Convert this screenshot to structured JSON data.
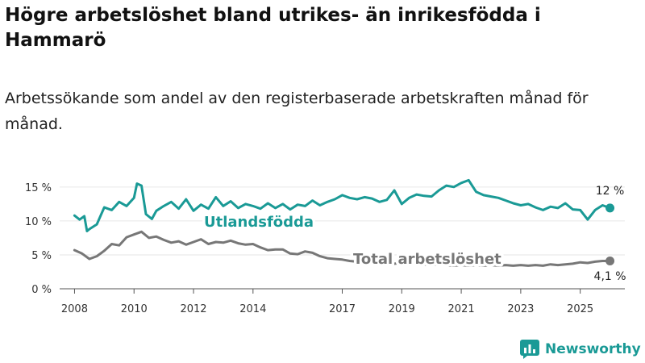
{
  "title": "Högre arbetslöshet bland utrikes- än inrikesfödda i Hammarö",
  "subtitle": "Arbetssökande som andel av den registerbaserade arbetskraften månad för månad.",
  "brand": "Newsworthy",
  "colors": {
    "foreign": "#1a9a96",
    "total": "#777777",
    "axis": "#555555",
    "grid": "#e6e6e6"
  },
  "chart_data": {
    "type": "line",
    "xlim": [
      2007.5,
      2026.5
    ],
    "ylim": [
      0,
      17
    ],
    "y_ticks": [
      0,
      5,
      10,
      15
    ],
    "y_tick_labels": [
      "0 %",
      "5 %",
      "10 %",
      "15 %"
    ],
    "x_ticks": [
      2008,
      2010,
      2012,
      2014,
      2017,
      2019,
      2021,
      2023,
      2025
    ],
    "x_tick_labels": [
      "2008",
      "2010",
      "2012",
      "2014",
      "2017",
      "2019",
      "2021",
      "2023",
      "2025"
    ],
    "series": [
      {
        "name": "Utlandsfödda",
        "label": "Utlandsfödda",
        "end_label": "12 %",
        "color": "#1a9a96",
        "x": [
          2008.0,
          2008.17,
          2008.33,
          2008.42,
          2008.5,
          2008.75,
          2009.0,
          2009.25,
          2009.5,
          2009.75,
          2010.0,
          2010.1,
          2010.25,
          2010.4,
          2010.6,
          2010.75,
          2011.0,
          2011.25,
          2011.5,
          2011.75,
          2012.0,
          2012.25,
          2012.5,
          2012.75,
          2013.0,
          2013.25,
          2013.5,
          2013.75,
          2014.0,
          2014.25,
          2014.5,
          2014.75,
          2015.0,
          2015.25,
          2015.5,
          2015.75,
          2016.0,
          2016.25,
          2016.5,
          2016.75,
          2017.0,
          2017.25,
          2017.5,
          2017.75,
          2018.0,
          2018.25,
          2018.5,
          2018.75,
          2019.0,
          2019.25,
          2019.5,
          2019.75,
          2020.0,
          2020.25,
          2020.5,
          2020.75,
          2021.0,
          2021.25,
          2021.5,
          2021.75,
          2022.0,
          2022.25,
          2022.5,
          2022.75,
          2023.0,
          2023.25,
          2023.5,
          2023.75,
          2024.0,
          2024.25,
          2024.5,
          2024.75,
          2025.0,
          2025.25,
          2025.5,
          2025.75,
          2026.0
        ],
        "y": [
          10.8,
          10.2,
          10.7,
          8.5,
          8.8,
          9.5,
          12.0,
          11.6,
          12.8,
          12.2,
          13.4,
          15.5,
          15.2,
          11.0,
          10.3,
          11.5,
          12.2,
          12.8,
          11.8,
          13.2,
          11.5,
          12.4,
          11.8,
          13.5,
          12.2,
          12.9,
          11.9,
          12.5,
          12.2,
          11.8,
          12.6,
          11.9,
          12.5,
          11.7,
          12.4,
          12.2,
          13.0,
          12.3,
          12.8,
          13.2,
          13.8,
          13.4,
          13.2,
          13.5,
          13.3,
          12.8,
          13.1,
          14.5,
          12.5,
          13.4,
          13.9,
          13.7,
          13.6,
          14.5,
          15.2,
          15.0,
          15.6,
          16.0,
          14.3,
          13.8,
          13.6,
          13.4,
          13.0,
          12.6,
          12.3,
          12.5,
          12.0,
          11.6,
          12.1,
          11.9,
          12.6,
          11.7,
          11.6,
          10.2,
          11.6,
          12.3,
          11.9
        ]
      },
      {
        "name": "Total arbetslöshet",
        "label": "Total arbetslöshet",
        "end_label": "4,1 %",
        "color": "#777777",
        "x": [
          2008.0,
          2008.25,
          2008.5,
          2008.75,
          2009.0,
          2009.25,
          2009.5,
          2009.75,
          2010.0,
          2010.25,
          2010.5,
          2010.75,
          2011.0,
          2011.25,
          2011.5,
          2011.75,
          2012.0,
          2012.25,
          2012.5,
          2012.75,
          2013.0,
          2013.25,
          2013.5,
          2013.75,
          2014.0,
          2014.25,
          2014.5,
          2014.75,
          2015.0,
          2015.25,
          2015.5,
          2015.75,
          2016.0,
          2016.25,
          2016.5,
          2016.75,
          2017.0,
          2017.25,
          2017.5,
          2017.75,
          2018.0,
          2018.25,
          2018.5,
          2018.75,
          2019.0,
          2019.25,
          2019.5,
          2019.75,
          2020.0,
          2020.25,
          2020.5,
          2020.75,
          2021.0,
          2021.25,
          2021.5,
          2021.75,
          2022.0,
          2022.25,
          2022.5,
          2022.75,
          2023.0,
          2023.25,
          2023.5,
          2023.75,
          2024.0,
          2024.25,
          2024.5,
          2024.75,
          2025.0,
          2025.25,
          2025.5,
          2025.75,
          2026.0
        ],
        "y": [
          5.7,
          5.2,
          4.4,
          4.8,
          5.6,
          6.6,
          6.4,
          7.6,
          8.0,
          8.4,
          7.5,
          7.7,
          7.2,
          6.8,
          7.0,
          6.5,
          6.9,
          7.3,
          6.6,
          6.9,
          6.8,
          7.1,
          6.7,
          6.5,
          6.6,
          6.1,
          5.7,
          5.8,
          5.8,
          5.2,
          5.1,
          5.5,
          5.3,
          4.8,
          4.5,
          4.4,
          4.3,
          4.1,
          4.0,
          3.9,
          4.0,
          3.9,
          3.8,
          3.7,
          3.8,
          3.7,
          3.6,
          3.6,
          3.5,
          3.6,
          3.5,
          3.4,
          3.5,
          3.4,
          3.5,
          3.4,
          3.5,
          3.4,
          3.5,
          3.4,
          3.5,
          3.4,
          3.5,
          3.4,
          3.6,
          3.5,
          3.6,
          3.7,
          3.9,
          3.8,
          4.0,
          4.1,
          4.1
        ]
      }
    ]
  }
}
